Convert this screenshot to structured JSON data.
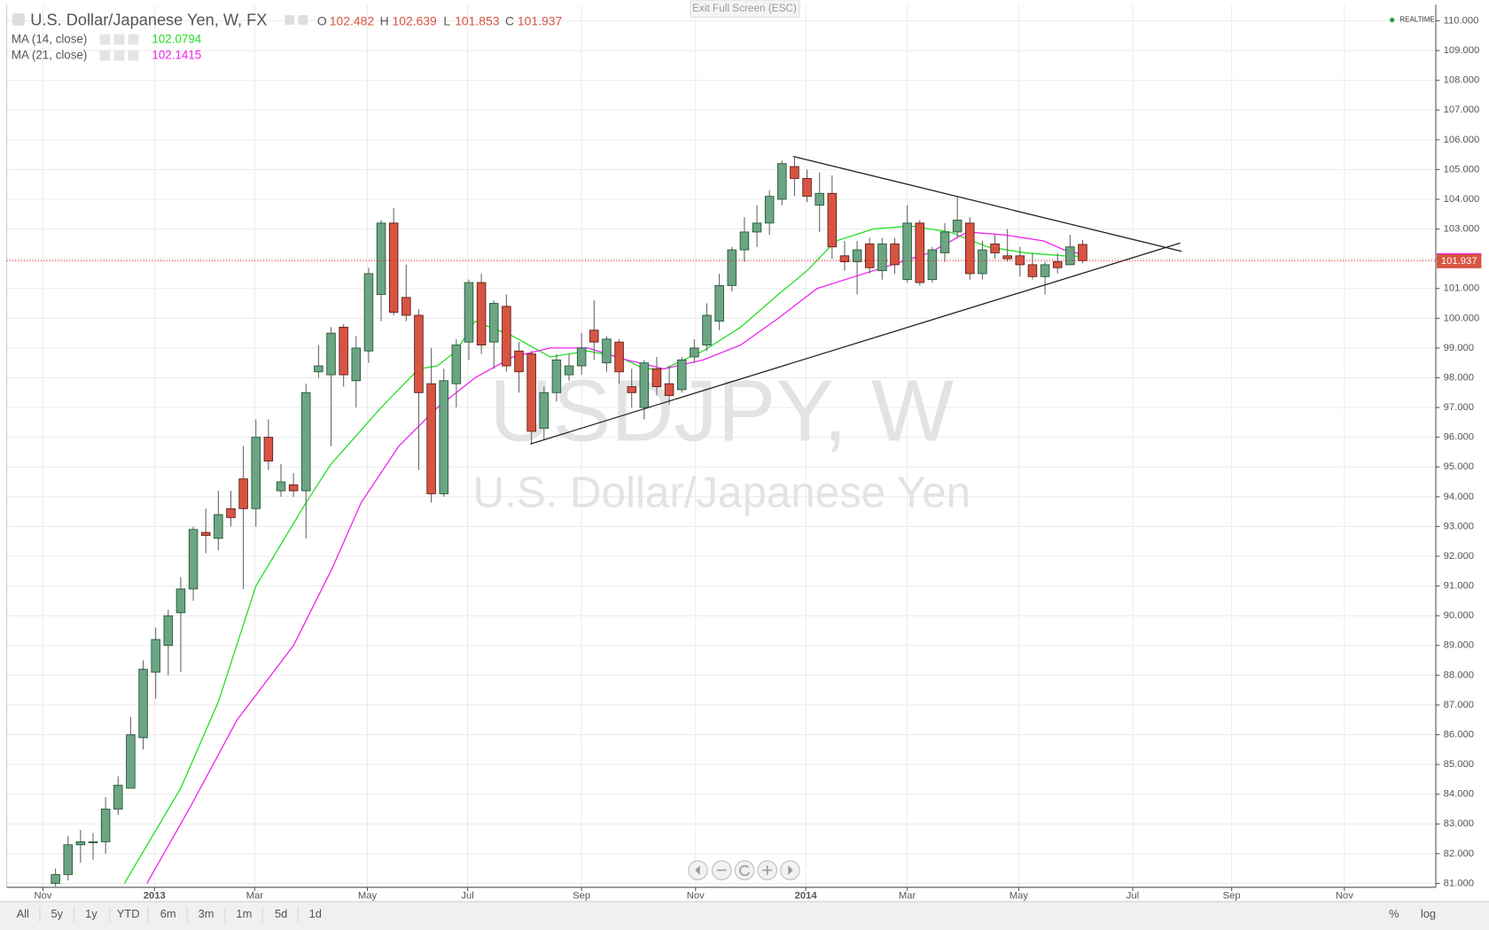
{
  "chart_data": {
    "type": "candlestick",
    "title": "U.S. Dollar/Japanese Yen, W, FX",
    "watermark": "USDJPY, W",
    "watermark_subtitle": "U.S. Dollar/Japanese Yen",
    "ohlc_labels": [
      "O",
      "H",
      "L",
      "C"
    ],
    "up_color": "#6ba583",
    "down_color": "#d75442",
    "categories": [
      null,
      null,
      null,
      null,
      null,
      null,
      null,
      null,
      null,
      null,
      null,
      null,
      null,
      null,
      null,
      null,
      null,
      null,
      null,
      null,
      null,
      null,
      null,
      null,
      null,
      null,
      null,
      null,
      null,
      null,
      null,
      null,
      null,
      null,
      null,
      null,
      null,
      null,
      null,
      null,
      null,
      null,
      null,
      null,
      null,
      null,
      null,
      null,
      null,
      null,
      null,
      null,
      null,
      null,
      null,
      null,
      null,
      null,
      null,
      null,
      null,
      null,
      null,
      null,
      null,
      null,
      null,
      null,
      null,
      null,
      null,
      null,
      null,
      null,
      null,
      null,
      null,
      null,
      null,
      null,
      null,
      null,
      null
    ],
    "open": [
      81.0,
      81.3,
      82.3,
      82.4,
      82.4,
      83.5,
      84.2,
      85.9,
      88.1,
      89.0,
      90.1,
      90.9,
      92.8,
      92.6,
      93.6,
      94.6,
      93.6,
      96.0,
      94.2,
      94.4,
      94.2,
      98.2,
      98.1,
      99.7,
      97.9,
      98.9,
      100.8,
      103.2,
      100.7,
      100.1,
      97.8,
      94.1,
      97.8,
      99.2,
      101.2,
      99.2,
      100.4,
      98.9,
      98.8,
      96.3,
      97.5,
      98.1,
      98.4,
      99.6,
      98.5,
      99.2,
      97.7,
      97.0,
      98.3,
      97.8,
      97.6,
      98.7,
      99.1,
      99.9,
      101.1,
      102.3,
      102.9,
      103.2,
      104.0,
      105.1,
      104.7,
      103.8,
      104.2,
      102.1,
      101.9,
      102.5,
      101.6,
      102.5,
      101.3,
      103.2,
      101.3,
      102.2,
      102.9,
      103.2,
      101.5,
      102.5,
      102.1,
      102.1,
      101.8,
      101.4,
      101.9,
      101.8,
      102.482
    ],
    "high": [
      81.5,
      82.6,
      82.8,
      82.7,
      83.9,
      84.6,
      86.6,
      88.5,
      89.6,
      90.2,
      91.3,
      93.0,
      93.6,
      94.2,
      94.2,
      95.7,
      96.6,
      96.6,
      95.1,
      94.8,
      97.8,
      99.1,
      99.7,
      99.8,
      99.4,
      101.7,
      103.3,
      103.7,
      101.8,
      100.3,
      99.0,
      98.3,
      99.3,
      101.3,
      101.5,
      100.6,
      100.8,
      99.2,
      98.9,
      97.7,
      98.8,
      98.8,
      99.5,
      100.6,
      99.4,
      99.3,
      98.3,
      98.6,
      98.7,
      98.4,
      98.7,
      99.3,
      100.5,
      101.5,
      102.4,
      103.4,
      103.8,
      104.3,
      105.3,
      105.4,
      105.0,
      104.9,
      104.8,
      102.6,
      102.6,
      102.7,
      102.7,
      102.7,
      103.8,
      103.3,
      102.4,
      103.2,
      104.1,
      103.4,
      102.6,
      102.8,
      103.0,
      102.4,
      102.2,
      101.9,
      102.2,
      102.8,
      102.639
    ],
    "low": [
      80.9,
      81.1,
      81.7,
      81.8,
      82.0,
      83.3,
      84.2,
      85.5,
      87.2,
      88.0,
      88.1,
      90.5,
      92.1,
      92.2,
      93.0,
      90.9,
      93.0,
      94.9,
      94.0,
      94.0,
      92.6,
      98.0,
      95.7,
      97.7,
      97.0,
      98.5,
      99.9,
      100.1,
      99.9,
      94.9,
      93.8,
      94.0,
      97.0,
      98.6,
      98.8,
      98.3,
      98.2,
      97.5,
      95.8,
      95.9,
      97.2,
      97.9,
      98.1,
      98.6,
      98.2,
      97.8,
      97.0,
      96.6,
      97.4,
      97.1,
      97.5,
      98.5,
      98.9,
      99.6,
      100.9,
      101.9,
      102.4,
      102.8,
      103.8,
      104.1,
      103.9,
      102.9,
      102.0,
      101.6,
      100.8,
      101.5,
      101.3,
      101.5,
      101.2,
      101.1,
      101.2,
      101.9,
      102.7,
      101.3,
      101.3,
      102.0,
      101.9,
      101.4,
      101.3,
      100.8,
      101.5,
      101.8,
      101.853
    ],
    "close": [
      81.3,
      82.3,
      82.4,
      82.4,
      83.5,
      84.3,
      86.0,
      88.2,
      89.2,
      90.0,
      90.9,
      92.9,
      92.7,
      93.4,
      93.3,
      93.6,
      96.0,
      95.2,
      94.5,
      94.2,
      97.5,
      98.4,
      99.5,
      98.1,
      99.0,
      101.5,
      103.2,
      100.2,
      100.1,
      97.5,
      94.1,
      97.9,
      99.1,
      101.2,
      99.1,
      100.5,
      98.4,
      98.2,
      96.2,
      97.5,
      98.6,
      98.4,
      99.0,
      99.2,
      99.3,
      98.2,
      97.5,
      98.5,
      97.7,
      97.4,
      98.6,
      99.0,
      100.1,
      101.1,
      102.3,
      102.9,
      103.2,
      104.1,
      105.2,
      104.7,
      104.1,
      104.2,
      102.4,
      101.9,
      102.3,
      101.7,
      102.5,
      101.8,
      103.2,
      101.2,
      102.3,
      102.9,
      103.3,
      101.5,
      102.3,
      102.2,
      102.0,
      101.8,
      101.4,
      101.8,
      101.7,
      102.4,
      101.937
    ],
    "series": [
      {
        "name": "MA (14, close)",
        "color": "#22dd22",
        "x": [
          5.5,
          10,
          13,
          16,
          20,
          22,
          26,
          29,
          30.5,
          32,
          33.5,
          36.5,
          39.5,
          42.5,
          45,
          47,
          48.6,
          51.7,
          54.7,
          57.7,
          60,
          62.3,
          65.3,
          68.3,
          71.4,
          74.4,
          77.4,
          80.5,
          82
        ],
        "values": [
          81.0,
          84.2,
          87.1,
          91.0,
          93.8,
          95.1,
          97.0,
          98.3,
          98.4,
          98.9,
          99.9,
          99.4,
          98.7,
          98.9,
          98.7,
          98.3,
          98.3,
          98.9,
          99.7,
          100.8,
          101.6,
          102.6,
          103.0,
          103.1,
          102.9,
          102.4,
          102.2,
          102.1,
          102.0794
        ]
      },
      {
        "name": "MA (21, close)",
        "color": "#ee22ee",
        "x": [
          7.3,
          10.8,
          14.5,
          19,
          22.1,
          24.4,
          27.4,
          30.5,
          33.5,
          36.5,
          39.5,
          42.5,
          45.6,
          48.6,
          51.7,
          54.7,
          57.7,
          60.8,
          63.8,
          66.8,
          69.8,
          72.8,
          75.8,
          78.9,
          80.5,
          82
        ],
        "values": [
          81.0,
          83.6,
          86.5,
          89.0,
          91.6,
          93.8,
          95.7,
          97.0,
          98.0,
          98.7,
          99.0,
          99.0,
          98.6,
          98.3,
          98.6,
          99.1,
          100.0,
          101.0,
          101.4,
          101.8,
          102.2,
          102.9,
          102.8,
          102.6,
          102.3,
          102.1415
        ]
      }
    ],
    "trend_lines": [
      {
        "color": "#222222",
        "x": [
          58.9,
          89.9
        ],
        "values": [
          105.44,
          102.25
        ]
      },
      {
        "color": "#222222",
        "x": [
          37.9,
          89.8
        ],
        "values": [
          95.77,
          102.53
        ]
      }
    ],
    "price_line_color": "#e02020",
    "xlim": [
      -3.9,
      110.2
    ],
    "xticks": [
      {
        "value": -1,
        "label": "Nov"
      },
      {
        "value": 7.9,
        "label": "2013"
      },
      {
        "value": 15.9,
        "label": "Mar"
      },
      {
        "value": 24.9,
        "label": "May"
      },
      {
        "value": 32.9,
        "label": "Jul"
      },
      {
        "value": 42,
        "label": "Sep"
      },
      {
        "value": 51.1,
        "label": "Nov"
      },
      {
        "value": 59.9,
        "label": "2014"
      },
      {
        "value": 68,
        "label": "Mar"
      },
      {
        "value": 76.9,
        "label": "May"
      },
      {
        "value": 86,
        "label": "Jul"
      },
      {
        "value": 93.9,
        "label": "Sep"
      },
      {
        "value": 102.9,
        "label": "Nov"
      }
    ],
    "ylim": [
      80.87,
      110.54
    ],
    "yticks": [
      {
        "value": 81,
        "label": "81.000"
      },
      {
        "value": 82,
        "label": "82.000"
      },
      {
        "value": 83,
        "label": "83.000"
      },
      {
        "value": 84,
        "label": "84.000"
      },
      {
        "value": 85,
        "label": "85.000"
      },
      {
        "value": 86,
        "label": "86.000"
      },
      {
        "value": 87,
        "label": "87.000"
      },
      {
        "value": 88,
        "label": "88.000"
      },
      {
        "value": 89,
        "label": "89.000"
      },
      {
        "value": 90,
        "label": "90.000"
      },
      {
        "value": 91,
        "label": "91.000"
      },
      {
        "value": 92,
        "label": "92.000"
      },
      {
        "value": 93,
        "label": "93.000"
      },
      {
        "value": 94,
        "label": "94.000"
      },
      {
        "value": 95,
        "label": "95.000"
      },
      {
        "value": 96,
        "label": "96.000"
      },
      {
        "value": 97,
        "label": "97.000"
      },
      {
        "value": 98,
        "label": "98.000"
      },
      {
        "value": 99,
        "label": "99.000"
      },
      {
        "value": 100,
        "label": "100.000"
      },
      {
        "value": 101,
        "label": "101.000"
      },
      {
        "value": 102,
        "label": "102.000"
      },
      {
        "value": 103,
        "label": "103.000"
      },
      {
        "value": 104,
        "label": "104.000"
      },
      {
        "value": 105,
        "label": "105.000"
      },
      {
        "value": 106,
        "label": "106.000"
      },
      {
        "value": 107,
        "label": "107.000"
      },
      {
        "value": 108,
        "label": "108.000"
      },
      {
        "value": 109,
        "label": "109.000"
      },
      {
        "value": 110,
        "label": "110.000"
      }
    ],
    "grid": true
  },
  "ui": {
    "exit_button": "Exit Full Screen (ESC)",
    "realtime": "REALTIME",
    "ranges": [
      "All",
      "5y",
      "1y",
      "YTD",
      "6m",
      "3m",
      "1m",
      "5d",
      "1d"
    ],
    "percent": "%",
    "log": "log"
  }
}
